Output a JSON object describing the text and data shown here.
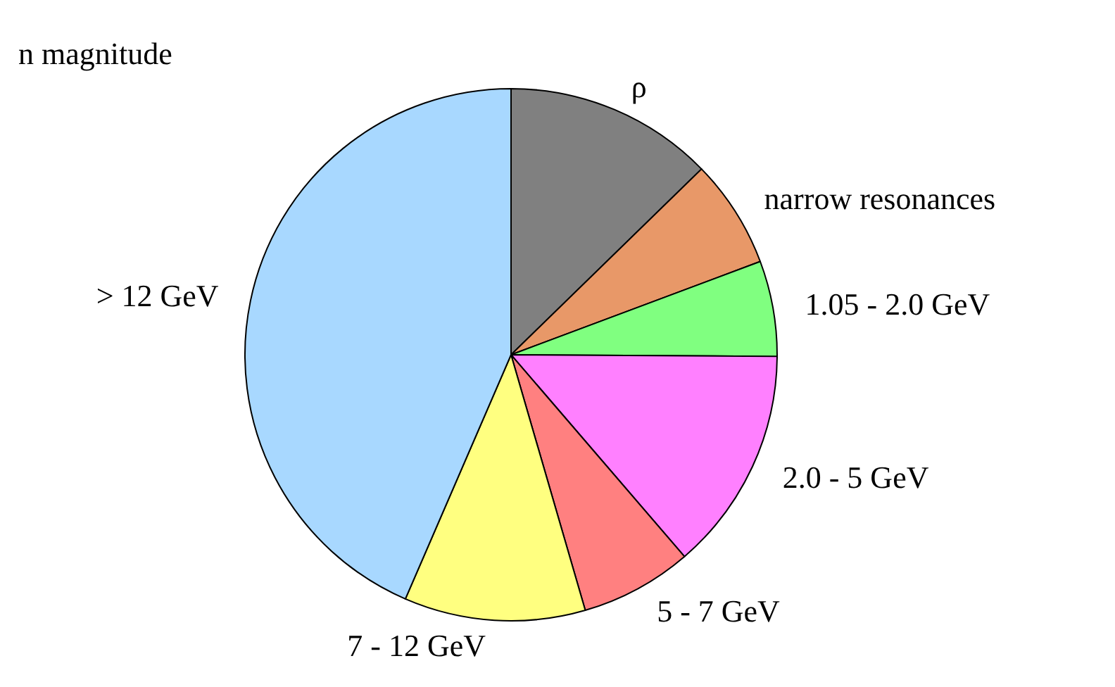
{
  "chart_data": {
    "type": "pie",
    "title": "n magnitude",
    "categories": [
      "ρ",
      "narrow resonances",
      "1.05 - 2.0 GeV",
      "2.0 - 5 GeV",
      "5 - 7 GeV",
      "7 - 12 GeV",
      "> 12 GeV"
    ],
    "values": [
      12.7,
      6.6,
      5.8,
      13.6,
      6.8,
      11.0,
      43.5
    ],
    "colors": [
      "#808080",
      "#e89868",
      "#80ff80",
      "#ff80ff",
      "#ff8080",
      "#ffff80",
      "#a8d8ff"
    ]
  }
}
